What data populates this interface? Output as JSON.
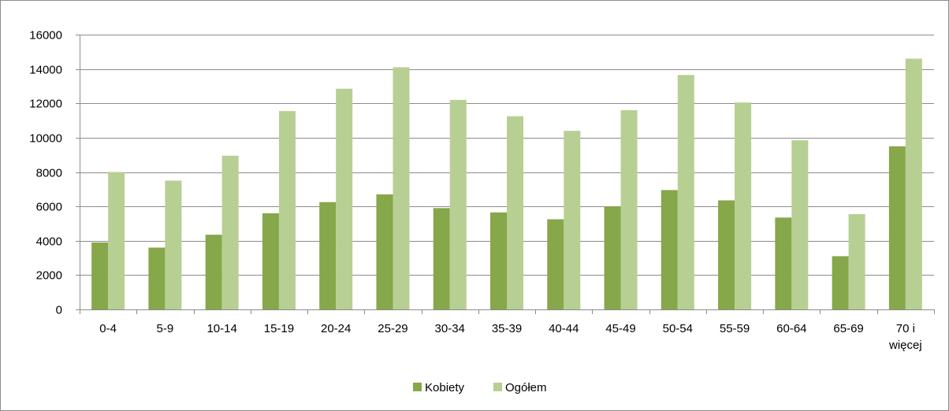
{
  "chart_data": {
    "type": "bar",
    "categories": [
      "0-4",
      "5-9",
      "10-14",
      "15-19",
      "20-24",
      "25-29",
      "30-34",
      "35-39",
      "40-44",
      "45-49",
      "50-54",
      "55-59",
      "60-64",
      "65-69",
      "70 i więcej"
    ],
    "category_lines": [
      [
        "0-4"
      ],
      [
        "5-9"
      ],
      [
        "10-14"
      ],
      [
        "15-19"
      ],
      [
        "20-24"
      ],
      [
        "25-29"
      ],
      [
        "30-34"
      ],
      [
        "35-39"
      ],
      [
        "40-44"
      ],
      [
        "45-49"
      ],
      [
        "50-54"
      ],
      [
        "55-59"
      ],
      [
        "60-64"
      ],
      [
        "65-69"
      ],
      [
        "70 i",
        "więcej"
      ]
    ],
    "series": [
      {
        "name": "Kobiety",
        "color": "#86a74a",
        "values": [
          3900,
          3600,
          4350,
          5600,
          6250,
          6700,
          5900,
          5650,
          5250,
          6000,
          6950,
          6350,
          5350,
          3100,
          9500
        ]
      },
      {
        "name": "Ogółem",
        "color": "#b7cf93",
        "values": [
          8000,
          7500,
          8950,
          11550,
          12850,
          14100,
          12200,
          11250,
          10400,
          11600,
          13650,
          12050,
          9850,
          5550,
          14600
        ]
      }
    ],
    "ylim": [
      0,
      16000
    ],
    "yticks": [
      0,
      2000,
      4000,
      6000,
      8000,
      10000,
      12000,
      14000,
      16000
    ],
    "grid": true,
    "legend": "bottom",
    "title": "",
    "xlabel": "",
    "ylabel": ""
  }
}
